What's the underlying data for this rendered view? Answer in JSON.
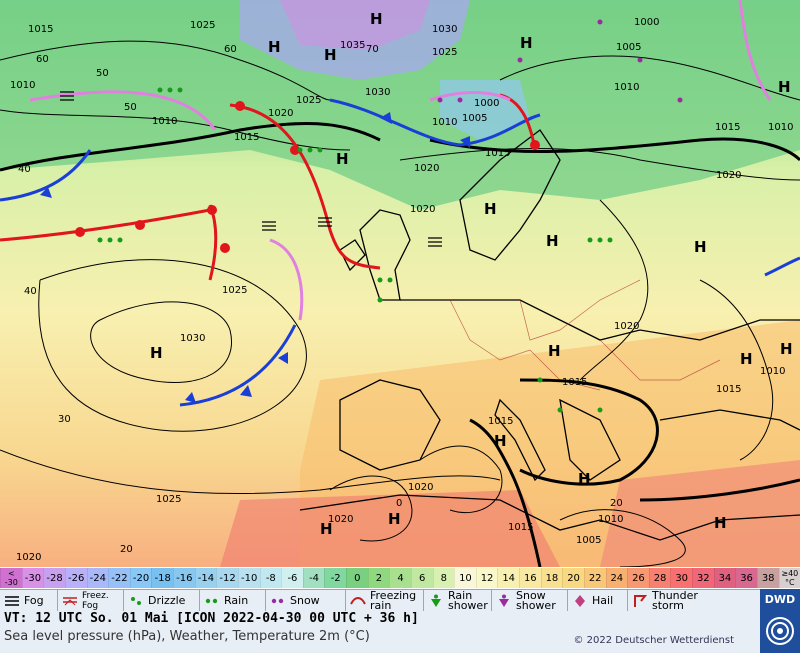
{
  "map": {
    "pressure_labels": [
      "1025",
      "1015",
      "1010",
      "1010",
      "1030",
      "1035",
      "1030",
      "1025",
      "1000",
      "1005",
      "1010",
      "1015",
      "1010",
      "1005",
      "1000",
      "1015",
      "1010",
      "1020",
      "1015",
      "1025",
      "1020",
      "1025",
      "1030",
      "1025",
      "1020",
      "1020",
      "1020",
      "1015",
      "1015",
      "1010",
      "1015",
      "1020",
      "1010",
      "1005",
      "1020",
      "1015",
      "1020"
    ],
    "temp_labels": [
      "60",
      "50",
      "50",
      "40",
      "40",
      "30",
      "20",
      "20",
      "0",
      "70",
      "60"
    ],
    "highs_lows": [
      "H",
      "H",
      "H",
      "H",
      "H",
      "H",
      "H",
      "H",
      "H",
      "H",
      "H",
      "H",
      "H",
      "H",
      "H",
      "H",
      "H",
      "H"
    ],
    "scale": [
      "< -30",
      "-30",
      "-28",
      "-26",
      "-24",
      "-22",
      "-20",
      "-18",
      "-16",
      "-14",
      "-12",
      "-10",
      "-8",
      "-6",
      "-4",
      "-2",
      "0",
      "2",
      "4",
      "6",
      "8",
      "10",
      "12",
      "14",
      "16",
      "18",
      "20",
      "22",
      "24",
      "26",
      "28",
      "30",
      "32",
      "34",
      "36",
      "38",
      "≥40 °C"
    ],
    "scale_colors": [
      "#d070d0",
      "#d890e8",
      "#c8a0f0",
      "#b8b0f8",
      "#a8b8f8",
      "#98c0f8",
      "#88c8f8",
      "#78c0f0",
      "#88c8f0",
      "#98d0f0",
      "#a8d8f0",
      "#b8e0f0",
      "#c0e8f0",
      "#d0f0f0",
      "#a0e0c0",
      "#80d8a0",
      "#78d080",
      "#90d880",
      "#a8e090",
      "#c0e8a0",
      "#d8f0b0",
      "#f8f8d8",
      "#f8f8c8",
      "#f8f0b0",
      "#f8e8a0",
      "#f8e090",
      "#f8d880",
      "#f8c878",
      "#f8b070",
      "#f89870",
      "#f88070",
      "#f87070",
      "#f06878",
      "#e06080",
      "#d86890",
      "#c8a0a0",
      "#d8d0d0"
    ]
  },
  "legend": {
    "fog": "Fog",
    "freez_fog": "Freez.\nFog",
    "drizzle": "Drizzle",
    "rain": "Rain",
    "snow": "Snow",
    "freezing_rain": "Freezing\nrain",
    "rain_shower": "Rain\nshower",
    "snow_shower": "Snow\nshower",
    "hail": "Hail",
    "thunderstorm": "Thunder\nstorm"
  },
  "info": {
    "vt": "VT: 12 UTC So.  01 Mai [ICON 2022-04-30  00 UTC + 36 h]",
    "subtitle": "Sea level pressure (hPa), Weather, Temperature 2m (°C)",
    "copyright": "© 2022 Deutscher Wetterdienst",
    "logo": "DWD"
  },
  "colors": {
    "cold_front": "#1a3fd6",
    "warm_front": "#e0161c",
    "occlusion": "#e080e0"
  }
}
